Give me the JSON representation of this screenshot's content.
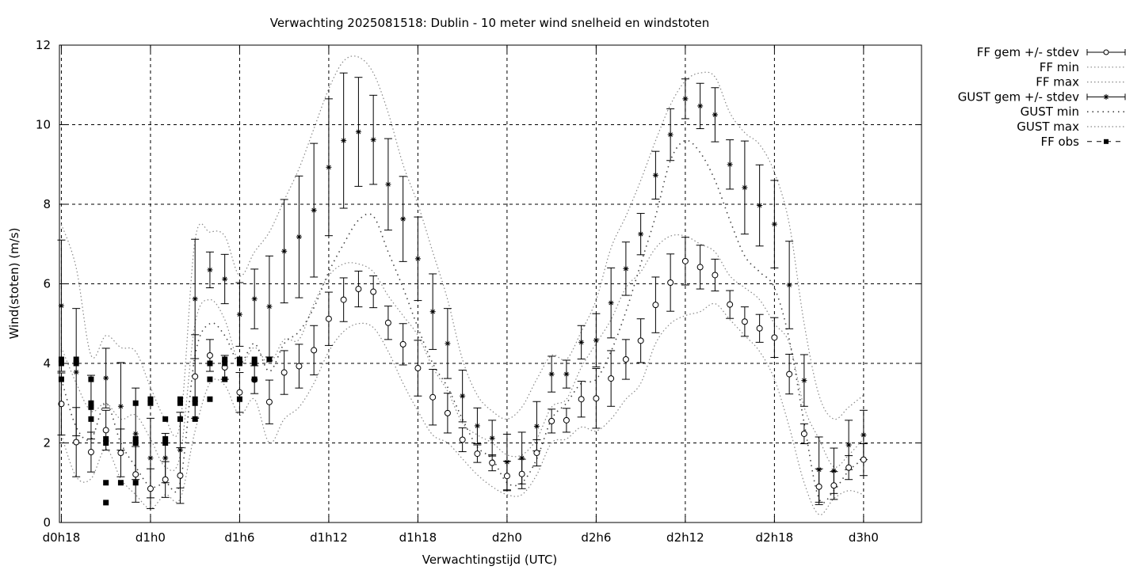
{
  "chart_data": {
    "type": "line",
    "title": "Verwachting 2025081518: Dublin - 10 meter wind snelheid en windstoten",
    "xlabel": "Verwachtingstijd (UTC)",
    "ylabel": "Wind(stoten) (m/s)",
    "ylim": [
      0,
      12
    ],
    "yticks": [
      0,
      2,
      4,
      6,
      8,
      10,
      12
    ],
    "x_unit": "hours since d0h18",
    "xlim": [
      -0.13,
      57.9
    ],
    "xticks": [
      {
        "x": 0,
        "label": "d0h18"
      },
      {
        "x": 6,
        "label": "d1h0"
      },
      {
        "x": 12,
        "label": "d1h6"
      },
      {
        "x": 18,
        "label": "d1h12"
      },
      {
        "x": 24,
        "label": "d1h18"
      },
      {
        "x": 30,
        "label": "d2h0"
      },
      {
        "x": 36,
        "label": "d2h6"
      },
      {
        "x": 42,
        "label": "d2h12"
      },
      {
        "x": 48,
        "label": "d2h18"
      },
      {
        "x": 54,
        "label": "d3h0"
      }
    ],
    "grid": true,
    "legend_position": "outside-right-top",
    "legend": [
      {
        "label": "FF gem +/- stdev"
      },
      {
        "label": "FF min"
      },
      {
        "label": "FF max"
      },
      {
        "label": "GUST gem +/- stdev"
      },
      {
        "label": "GUST min"
      },
      {
        "label": "GUST max"
      },
      {
        "label": "FF obs"
      }
    ],
    "forecast_x": [
      0,
      1,
      2,
      3,
      4,
      5,
      6,
      7,
      8,
      9,
      10,
      11,
      12,
      13,
      14,
      15,
      16,
      17,
      18,
      19,
      20,
      21,
      22,
      23,
      24,
      25,
      26,
      27,
      28,
      29,
      30,
      31,
      32,
      33,
      34,
      35,
      36,
      37,
      38,
      39,
      40,
      41,
      42,
      43,
      44,
      45,
      46,
      47,
      48,
      49,
      50,
      51,
      52,
      53,
      54
    ],
    "series": [
      {
        "name": "FF gem +/- stdev",
        "values": [
          2.98,
          2.02,
          1.77,
          2.32,
          1.75,
          1.21,
          0.85,
          1.08,
          1.18,
          3.67,
          4.2,
          3.9,
          3.27,
          3.59,
          3.03,
          3.77,
          3.93,
          4.33,
          5.12,
          5.6,
          5.87,
          5.8,
          5.02,
          4.48,
          3.88,
          3.15,
          2.75,
          2.08,
          1.73,
          1.5,
          1.17,
          1.22,
          1.75,
          2.55,
          2.57,
          3.1,
          3.12,
          3.62,
          4.1,
          4.57,
          5.47,
          6.03,
          6.57,
          6.42,
          6.22,
          5.48,
          5.05,
          4.88,
          4.65,
          3.73,
          2.23,
          0.9,
          0.93,
          1.38,
          1.58
        ],
        "stdev": [
          0.78,
          0.87,
          0.5,
          0.5,
          0.6,
          0.7,
          0.5,
          0.45,
          0.7,
          1.05,
          0.4,
          0.3,
          0.5,
          0.35,
          0.55,
          0.55,
          0.55,
          0.62,
          0.67,
          0.55,
          0.45,
          0.4,
          0.42,
          0.52,
          0.7,
          0.7,
          0.5,
          0.3,
          0.22,
          0.2,
          0.37,
          0.37,
          0.33,
          0.3,
          0.3,
          0.45,
          0.75,
          0.7,
          0.5,
          0.55,
          0.7,
          0.72,
          0.6,
          0.55,
          0.4,
          0.35,
          0.37,
          0.35,
          0.5,
          0.5,
          0.25,
          0.45,
          0.35,
          0.3,
          0.4
        ]
      },
      {
        "name": "FF min",
        "values": [
          2.2,
          1.15,
          1.1,
          1.85,
          1.1,
          0.7,
          0.35,
          0.7,
          0.6,
          2.3,
          3.5,
          3.45,
          2.7,
          3.1,
          2.0,
          2.6,
          2.9,
          3.5,
          4.3,
          4.8,
          5.0,
          4.9,
          4.3,
          3.5,
          2.8,
          2.2,
          2.0,
          1.6,
          1.2,
          0.9,
          0.7,
          0.7,
          1.2,
          2.0,
          2.1,
          2.4,
          2.3,
          2.6,
          3.1,
          3.5,
          4.5,
          5.0,
          5.2,
          5.3,
          5.5,
          5.1,
          4.7,
          4.3,
          3.6,
          2.4,
          1.0,
          0.2,
          0.6,
          0.8,
          0.7
        ]
      },
      {
        "name": "FF max",
        "values": [
          4.4,
          3.5,
          2.8,
          3.0,
          2.6,
          2.7,
          2.1,
          1.4,
          1.7,
          5.0,
          5.6,
          5.1,
          4.0,
          4.4,
          4.0,
          4.6,
          4.6,
          5.5,
          6.2,
          6.5,
          6.5,
          6.3,
          5.7,
          5.2,
          4.7,
          3.9,
          3.3,
          2.5,
          2.2,
          2.0,
          1.7,
          1.7,
          2.1,
          2.9,
          3.1,
          3.9,
          4.5,
          5.1,
          5.9,
          6.3,
          6.9,
          7.2,
          7.2,
          7.0,
          6.8,
          6.2,
          5.9,
          5.6,
          5.0,
          4.5,
          2.9,
          2.1,
          1.4,
          1.7,
          2.1
        ]
      },
      {
        "name": "GUST gem +/- stdev",
        "values": [
          5.45,
          3.78,
          2.9,
          3.63,
          2.92,
          2.23,
          1.62,
          1.62,
          1.82,
          5.62,
          6.35,
          6.12,
          5.23,
          5.62,
          5.43,
          6.82,
          7.18,
          7.85,
          8.93,
          9.6,
          9.82,
          9.62,
          8.5,
          7.63,
          6.63,
          5.3,
          4.5,
          3.18,
          2.43,
          2.12,
          1.52,
          1.62,
          2.42,
          3.73,
          3.73,
          4.53,
          4.58,
          5.52,
          6.38,
          7.25,
          8.73,
          9.75,
          10.65,
          10.47,
          10.25,
          9.0,
          8.42,
          7.97,
          7.5,
          5.97,
          3.57,
          1.33,
          1.3,
          1.95,
          2.2
        ],
        "stdev": [
          1.65,
          1.6,
          0.8,
          0.75,
          1.1,
          1.15,
          1.0,
          0.62,
          0.95,
          1.5,
          0.45,
          0.62,
          0.8,
          0.75,
          1.27,
          1.3,
          1.53,
          1.68,
          1.72,
          1.7,
          1.37,
          1.12,
          1.15,
          1.07,
          1.05,
          0.95,
          0.88,
          0.65,
          0.45,
          0.45,
          0.7,
          0.65,
          0.62,
          0.45,
          0.35,
          0.42,
          0.67,
          0.88,
          0.67,
          0.52,
          0.6,
          0.65,
          0.5,
          0.57,
          0.68,
          0.62,
          1.17,
          1.02,
          1.1,
          1.1,
          0.65,
          0.82,
          0.57,
          0.62,
          0.62
        ]
      },
      {
        "name": "GUST min",
        "values": [
          3.6,
          2.4,
          2.1,
          3.0,
          2.0,
          1.4,
          0.9,
          1.0,
          1.0,
          4.2,
          5.0,
          4.7,
          4.0,
          4.5,
          3.8,
          4.5,
          4.8,
          5.4,
          6.3,
          7.0,
          7.6,
          7.7,
          6.8,
          5.9,
          4.9,
          4.0,
          3.4,
          2.6,
          1.9,
          1.6,
          1.0,
          1.0,
          1.6,
          2.6,
          3.0,
          3.5,
          3.6,
          4.3,
          5.3,
          6.5,
          7.7,
          9.1,
          9.6,
          9.3,
          8.6,
          7.6,
          6.7,
          6.3,
          5.9,
          4.6,
          2.5,
          0.6,
          0.8,
          1.3,
          1.6
        ]
      },
      {
        "name": "GUST max",
        "values": [
          7.5,
          6.4,
          4.2,
          4.7,
          4.4,
          4.3,
          3.4,
          2.6,
          2.5,
          7.1,
          7.3,
          7.2,
          6.2,
          6.8,
          7.3,
          8.1,
          8.9,
          9.9,
          10.9,
          11.6,
          11.7,
          11.3,
          10.3,
          9.0,
          8.0,
          6.8,
          5.6,
          4.1,
          3.2,
          2.8,
          2.6,
          2.9,
          3.6,
          4.2,
          4.1,
          4.8,
          5.6,
          6.9,
          7.7,
          8.6,
          9.6,
          10.5,
          11.1,
          11.3,
          11.2,
          10.3,
          9.8,
          9.5,
          8.8,
          7.5,
          5.0,
          3.2,
          2.6,
          2.9,
          3.2
        ]
      },
      {
        "name": "FF obs",
        "points": [
          [
            0,
            4.1
          ],
          [
            0,
            4.0
          ],
          [
            0,
            3.6
          ],
          [
            1,
            4.1
          ],
          [
            1,
            4.0
          ],
          [
            2,
            3.6
          ],
          [
            2,
            3.0
          ],
          [
            2,
            2.6
          ],
          [
            2,
            2.9
          ],
          [
            3,
            2.1
          ],
          [
            3,
            2.0
          ],
          [
            3,
            1.0
          ],
          [
            3,
            0.5
          ],
          [
            4,
            1.0
          ],
          [
            5,
            3.0
          ],
          [
            5,
            2.1
          ],
          [
            5,
            2.0
          ],
          [
            5,
            1.0
          ],
          [
            6,
            3.1
          ],
          [
            6,
            3.0
          ],
          [
            7,
            2.6
          ],
          [
            7,
            2.1
          ],
          [
            7,
            2.0
          ],
          [
            8,
            3.1
          ],
          [
            8,
            3.0
          ],
          [
            8,
            2.6
          ],
          [
            9,
            3.1
          ],
          [
            9,
            3.0
          ],
          [
            9,
            2.6
          ],
          [
            10,
            4.0
          ],
          [
            10,
            3.6
          ],
          [
            10,
            3.1
          ],
          [
            11,
            4.1
          ],
          [
            11,
            4.0
          ],
          [
            11,
            3.6
          ],
          [
            12,
            4.1
          ],
          [
            12,
            4.0
          ],
          [
            12,
            3.1
          ],
          [
            13,
            4.1
          ],
          [
            13,
            4.0
          ],
          [
            13,
            3.6
          ],
          [
            14,
            4.1
          ]
        ]
      }
    ]
  }
}
